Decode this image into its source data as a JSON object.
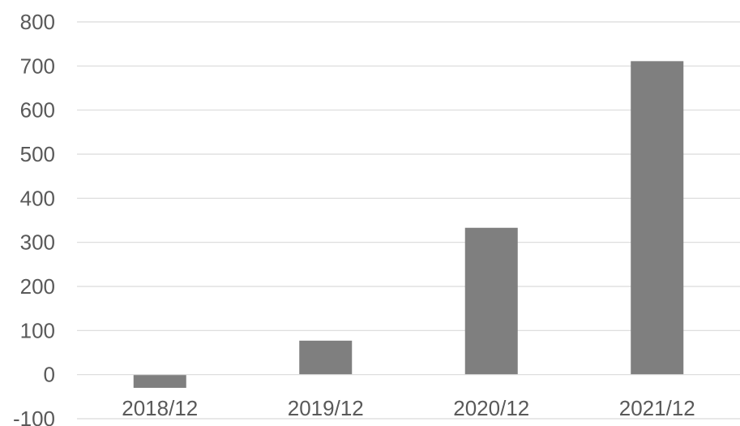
{
  "chart_data": {
    "type": "bar",
    "title": "",
    "xlabel": "",
    "ylabel": "",
    "categories": [
      "2018/12",
      "2019/12",
      "2020/12",
      "2021/12"
    ],
    "values": [
      -30,
      77,
      333,
      711
    ],
    "ylim": [
      -100,
      800
    ],
    "yticks": [
      -100,
      0,
      100,
      200,
      300,
      400,
      500,
      600,
      700,
      800
    ],
    "grid": true,
    "legend": "none",
    "bar_color": "#7f7f7f",
    "grid_color": "#d9d9d9",
    "text_color": "#595959"
  }
}
